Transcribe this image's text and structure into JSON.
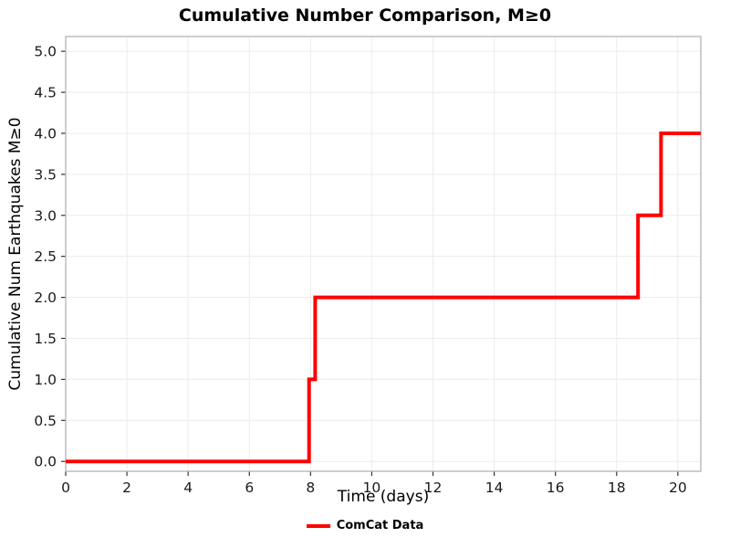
{
  "chart_data": {
    "type": "line",
    "subtype": "step",
    "title": "Cumulative Number Comparison, M≥0",
    "xlabel": "Time (days)",
    "ylabel": "Cumulative Num Earthquakes M≥0",
    "xlim": [
      0,
      20.75
    ],
    "ylim": [
      -0.12,
      5.18
    ],
    "xticks": [
      0,
      2,
      4,
      6,
      8,
      10,
      12,
      14,
      16,
      18,
      20
    ],
    "xtick_labels": [
      "0",
      "2",
      "4",
      "6",
      "8",
      "10",
      "12",
      "14",
      "16",
      "18",
      "20"
    ],
    "yticks": [
      0.0,
      0.5,
      1.0,
      1.5,
      2.0,
      2.5,
      3.0,
      3.5,
      4.0,
      4.5,
      5.0
    ],
    "ytick_labels": [
      "0.0",
      "0.5",
      "1.0",
      "1.5",
      "2.0",
      "2.5",
      "3.0",
      "3.5",
      "4.0",
      "4.5",
      "5.0"
    ],
    "grid": true,
    "legend_position": "bottom-center",
    "series": [
      {
        "name": "ComCat Data",
        "color": "#ff0000",
        "line_width": 4,
        "x": [
          0,
          7.95,
          7.95,
          8.15,
          8.15,
          18.7,
          18.7,
          19.45,
          19.45,
          20.75
        ],
        "y": [
          0,
          0,
          1,
          1,
          2,
          2,
          3,
          3,
          4,
          4
        ]
      }
    ],
    "event_summary": "Step jumps: cumulative count rises 0→1 at ~day 8.0, 1→2 at ~day 8.2, 2→3 at ~day 18.7, 3→4 at ~day 19.4"
  },
  "colors": {
    "line": "#ff0000",
    "grid": "#ececec",
    "plot_border": "#b4b4b4",
    "tick": "#333333",
    "text": "#000000"
  }
}
